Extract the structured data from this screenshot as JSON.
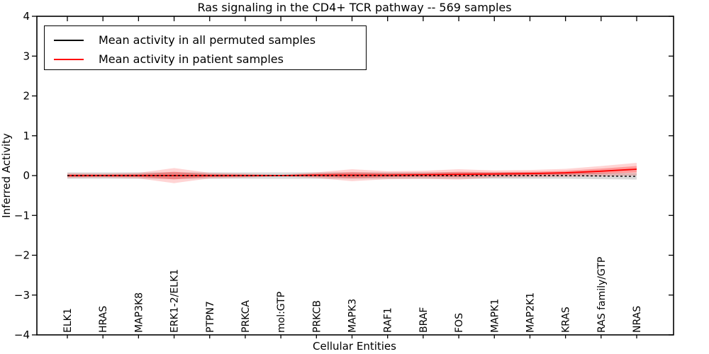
{
  "chart_data": {
    "type": "line",
    "title": "Ras signaling in the CD4+ TCR pathway -- 569 samples",
    "xlabel": "Cellular Entities",
    "ylabel": "Inferred Activity",
    "ylim": [
      -4,
      4
    ],
    "ytick_labels": [
      "4",
      "3",
      "2",
      "1",
      "0",
      "−1",
      "−2",
      "−3",
      "−4"
    ],
    "grid": false,
    "legend_position": "upper left",
    "categories": [
      "ELK1",
      "HRAS",
      "MAP3K8",
      "ERK1-2/ELK1",
      "PTPN7",
      "PRKCA",
      "mol:GTP",
      "PRKCB",
      "MAPK3",
      "RAF1",
      "BRAF",
      "FOS",
      "MAPK1",
      "MAP2K1",
      "KRAS",
      "RAS family/GTP",
      "NRAS"
    ],
    "series": [
      {
        "name": "Mean activity in all permuted samples",
        "color": "#000000",
        "line_style": "dashed",
        "values": [
          0,
          0,
          0,
          0,
          0,
          0,
          0,
          0,
          0,
          0,
          0,
          0,
          0,
          0,
          0,
          -0.01,
          -0.02
        ],
        "std": [
          0.08,
          0.08,
          0.08,
          0.08,
          0.08,
          0.08,
          0.08,
          0.08,
          0.08,
          0.08,
          0.08,
          0.08,
          0.08,
          0.08,
          0.08,
          0.08,
          0.08
        ]
      },
      {
        "name": "Mean activity in patient samples",
        "color": "#ff0000",
        "line_style": "solid",
        "values": [
          0,
          0,
          0,
          0,
          0,
          0,
          0,
          0.01,
          0.01,
          0.01,
          0.02,
          0.03,
          0.04,
          0.05,
          0.07,
          0.11,
          0.16
        ],
        "std": [
          0.06,
          0.05,
          0.07,
          0.19,
          0.07,
          0.05,
          0.02,
          0.07,
          0.15,
          0.1,
          0.1,
          0.13,
          0.09,
          0.09,
          0.1,
          0.13,
          0.16
        ]
      }
    ]
  }
}
